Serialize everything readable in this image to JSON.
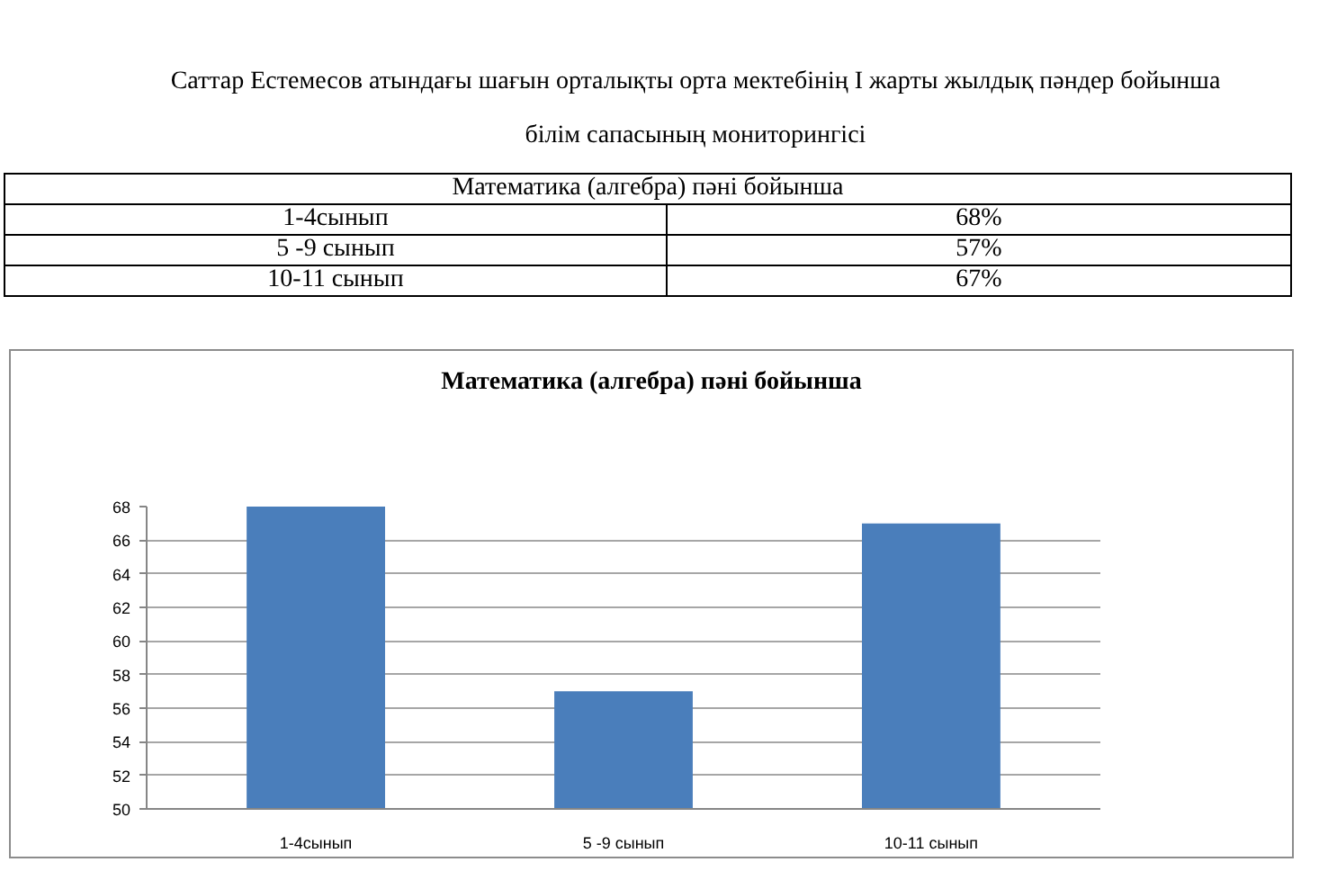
{
  "chart_data": {
    "type": "bar",
    "title": "Математика (алгебра) пәні бойынша",
    "annotations": [
      "Саттар Естемесов атындағы шағын орталықты орта мектебінің І жарты жылдық пәндер бойынша",
      "білім сапасының мониторингісі",
      "Математика (алгебра) пәні бойынша",
      "1-4сынып",
      "68%",
      "5 -9 сынып",
      "57%",
      "10-11 сынып",
      "67%"
    ],
    "categories": [
      "1-4сынып",
      "5 -9 сынып",
      "10-11 сынып"
    ],
    "values": [
      68,
      57,
      67
    ],
    "color": "#4a7ebb",
    "ylim": [
      50,
      68
    ],
    "yticks": [
      50,
      52,
      54,
      56,
      58,
      60,
      62,
      64,
      66,
      68
    ],
    "grid": "y"
  }
}
